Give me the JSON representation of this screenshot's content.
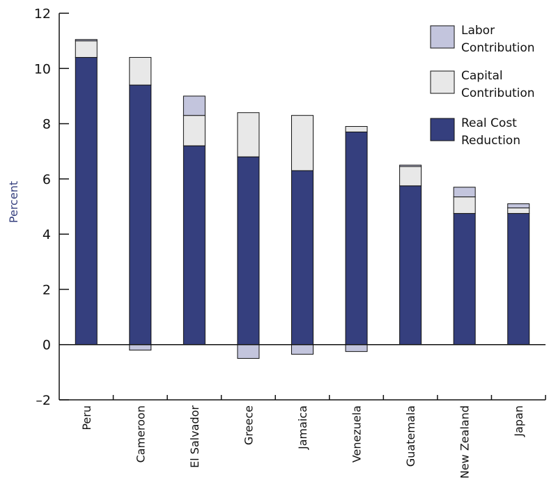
{
  "colors": {
    "real_cost": "#353f7e",
    "capital": "#e8e8e8",
    "labor": "#c3c5dd",
    "axis": "#111111",
    "ylabel": "#353f7e"
  },
  "chart_data": {
    "type": "bar",
    "stacked": true,
    "title": "",
    "xlabel": "",
    "ylabel": "Percent",
    "ylim": [
      -2,
      12
    ],
    "yticks": [
      -2,
      0,
      2,
      4,
      6,
      8,
      10,
      12
    ],
    "ytick_labels": [
      "–2",
      "0",
      "2",
      "4",
      "6",
      "8",
      "10",
      "12"
    ],
    "categories": [
      "Peru",
      "Cameroon",
      "El Salvador",
      "Greece",
      "Jamaica",
      "Venezuela",
      "Guatemala",
      "New Zealand",
      "Japan"
    ],
    "series": [
      {
        "name": "Real Cost Reduction",
        "color_key": "real_cost",
        "values": [
          10.4,
          9.4,
          7.2,
          6.8,
          6.3,
          7.7,
          5.75,
          4.75,
          4.75
        ]
      },
      {
        "name": "Capital Contribution",
        "color_key": "capital",
        "values": [
          0.6,
          1.0,
          1.1,
          1.6,
          2.0,
          0.2,
          0.7,
          0.6,
          0.2
        ]
      },
      {
        "name": "Labor Contribution",
        "color_key": "labor",
        "values": [
          0.05,
          -0.2,
          0.7,
          -0.5,
          -0.35,
          -0.25,
          0.05,
          0.35,
          0.15
        ]
      }
    ],
    "legend": {
      "placement": "top-right",
      "entries": [
        {
          "lines": [
            "Labor",
            "Contribution"
          ],
          "color_key": "labor"
        },
        {
          "lines": [
            "Capital",
            "Contribution"
          ],
          "color_key": "capital"
        },
        {
          "lines": [
            "Real Cost",
            "Reduction"
          ],
          "color_key": "real_cost"
        }
      ]
    }
  }
}
